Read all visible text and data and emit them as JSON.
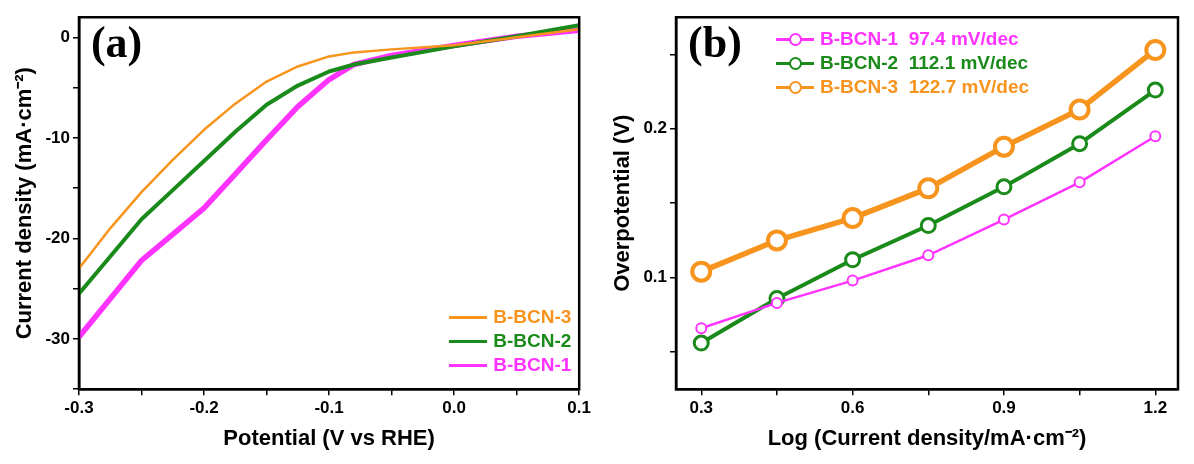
{
  "chart_data": [
    {
      "type": "line",
      "annotations": [
        "(a)"
      ],
      "xlabel": "Potential (V vs RHE)",
      "ylabel": "Current density (mA·cm⁻²)",
      "xlim": [
        -0.3,
        0.1
      ],
      "ylim": [
        -35,
        2
      ],
      "xticks": [
        -0.3,
        {
          "value": -0.25,
          "label": null
        },
        -0.2,
        {
          "value": -0.15,
          "label": null
        },
        -0.1,
        {
          "value": -0.05,
          "label": null
        },
        {
          "value": 0,
          "label": "0.0"
        },
        {
          "value": 0.05,
          "label": null
        },
        0.1
      ],
      "yticks": [
        {
          "value": -35,
          "label": null
        },
        -30,
        {
          "value": -25,
          "label": null
        },
        -20,
        {
          "value": -15,
          "label": null
        },
        -10,
        {
          "value": -5,
          "label": null
        },
        0
      ],
      "x": [
        -0.3,
        -0.275,
        -0.25,
        -0.225,
        -0.2,
        -0.175,
        -0.15,
        -0.125,
        -0.1,
        -0.08,
        -0.05,
        0,
        0.05,
        0.1
      ],
      "series": [
        {
          "name": "B-BCN-3",
          "color": "#f7941d",
          "values": [
            -23,
            -19,
            -15.4,
            -12.2,
            -9.2,
            -6.6,
            -4.4,
            -2.9,
            -1.9,
            -1.5,
            -1.2,
            -0.8,
            0,
            0.8
          ]
        },
        {
          "name": "B-BCN-2",
          "color": "#1a8a1a",
          "values": [
            -25.5,
            -21.8,
            -18.1,
            -15.2,
            -12.3,
            -9.4,
            -6.7,
            -4.8,
            -3.4,
            -2.7,
            -2,
            -0.9,
            0.1,
            1.2
          ]
        },
        {
          "name": "B-BCN-1",
          "color": "#ff33ff",
          "values": [
            -29.8,
            -26,
            -22.2,
            -19.6,
            -17,
            -13.6,
            -10.2,
            -6.9,
            -4.2,
            -2.7,
            -1.8,
            -0.8,
            0.1,
            0.7
          ]
        }
      ],
      "legend": "bottom right",
      "marker": "none",
      "line_style": "solid",
      "grid": false
    },
    {
      "type": "line",
      "annotations": [
        "(b)"
      ],
      "xlabel": "Log (Current density/mA·cm⁻²)",
      "ylabel": "Overpotential (V)",
      "xlim": [
        0.25,
        1.245
      ],
      "ylim": [
        0.025,
        0.275
      ],
      "xticks": [
        0.3,
        {
          "value": 0.45,
          "label": null
        },
        0.6,
        {
          "value": 0.75,
          "label": null
        },
        0.9,
        {
          "value": 1.05,
          "label": null
        },
        1.2
      ],
      "yticks": [
        {
          "value": 0.05,
          "label": null
        },
        0.1,
        {
          "value": 0.15,
          "label": null
        },
        0.2,
        {
          "value": 0.25,
          "label": null
        }
      ],
      "x": [
        0.3,
        0.45,
        0.6,
        0.75,
        0.9,
        1.05,
        1.2
      ],
      "series": [
        {
          "name": "B-BCN-1  97.4 mV/dec",
          "color": "#ff33ff",
          "values": [
            0.066,
            0.083,
            0.098,
            0.115,
            0.139,
            0.164,
            0.195
          ]
        },
        {
          "name": "B-BCN-2  112.1 mV/dec",
          "color": "#1a8a1a",
          "values": [
            0.056,
            0.086,
            0.112,
            0.135,
            0.161,
            0.19,
            0.226
          ]
        },
        {
          "name": "B-BCN-3  122.7 mV/dec",
          "color": "#f7941d",
          "values": [
            0.104,
            0.125,
            0.14,
            0.16,
            0.188,
            0.213,
            0.253
          ]
        }
      ],
      "legend": "top left",
      "marker": "circle",
      "line_style": "solid",
      "grid": false
    }
  ]
}
